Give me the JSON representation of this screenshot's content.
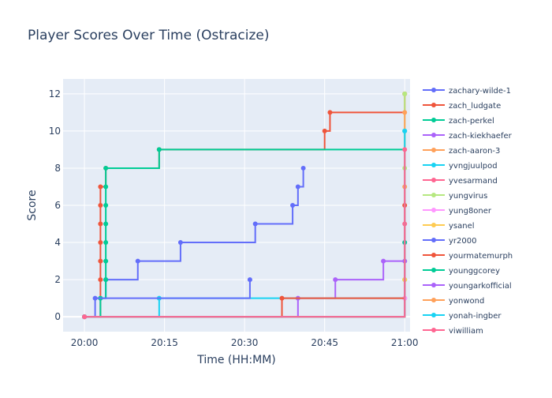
{
  "chart_data": {
    "type": "line",
    "line_shape": "step",
    "title": "Player Scores Over Time (Ostracize)",
    "xlabel": "Time (HH:MM)",
    "ylabel": "Score",
    "x_range": [
      "19:56",
      "21:01"
    ],
    "ylim": [
      -0.8,
      12.8
    ],
    "x_ticks": [
      "20:00",
      "20:15",
      "20:30",
      "20:45",
      "21:00"
    ],
    "y_ticks": [
      0,
      2,
      4,
      6,
      8,
      10,
      12
    ],
    "grid": true,
    "legend_position": "right",
    "colors": {
      "plot_bg": "#e5ecf6",
      "grid": "#ffffff",
      "text": "#2a3f5f"
    },
    "series": [
      {
        "name": "zachary-wilde-1",
        "color": "#636efa",
        "points": [
          [
            "20:00",
            0
          ],
          [
            "20:03",
            1
          ],
          [
            "20:04",
            2
          ],
          [
            "20:10",
            3
          ],
          [
            "20:18",
            4
          ],
          [
            "20:32",
            5
          ],
          [
            "20:39",
            6
          ],
          [
            "20:40",
            7
          ],
          [
            "20:41",
            8
          ]
        ]
      },
      {
        "name": "zach_ludgate",
        "color": "#ef553b",
        "points": [
          [
            "20:00",
            0
          ],
          [
            "20:03",
            2
          ],
          [
            "20:03",
            3
          ],
          [
            "20:03",
            4
          ],
          [
            "20:03",
            5
          ],
          [
            "20:03",
            6
          ],
          [
            "20:03",
            7
          ],
          [
            "20:04",
            8
          ],
          [
            "20:14",
            9
          ],
          [
            "20:45",
            10
          ],
          [
            "20:46",
            11
          ],
          [
            "21:00",
            12
          ]
        ]
      },
      {
        "name": "zach-perkel",
        "color": "#00cc96",
        "points": [
          [
            "20:00",
            0
          ],
          [
            "20:03",
            1
          ],
          [
            "20:04",
            2
          ],
          [
            "20:04",
            3
          ],
          [
            "20:04",
            4
          ],
          [
            "20:04",
            5
          ],
          [
            "20:04",
            6
          ],
          [
            "20:04",
            7
          ],
          [
            "20:04",
            8
          ],
          [
            "20:14",
            9
          ],
          [
            "21:00",
            10
          ]
        ]
      },
      {
        "name": "zach-kiekhaefer",
        "color": "#ab63fa",
        "points": [
          [
            "20:00",
            0
          ],
          [
            "20:40",
            1
          ],
          [
            "20:47",
            2
          ],
          [
            "20:56",
            3
          ],
          [
            "21:00",
            4
          ]
        ]
      },
      {
        "name": "zach-aaron-3",
        "color": "#ffa15a",
        "points": [
          [
            "20:00",
            0
          ],
          [
            "21:00",
            7
          ]
        ]
      },
      {
        "name": "yvngjuulpod",
        "color": "#19d3f3",
        "points": [
          [
            "20:00",
            0
          ],
          [
            "20:14",
            1
          ],
          [
            "21:00",
            2
          ]
        ]
      },
      {
        "name": "yvesarmand",
        "color": "#ff6692",
        "points": [
          [
            "20:00",
            0
          ],
          [
            "21:00",
            1
          ],
          [
            "21:00",
            5
          ]
        ]
      },
      {
        "name": "yungvirus",
        "color": "#b6e880",
        "points": [
          [
            "20:00",
            0
          ],
          [
            "21:00",
            2
          ],
          [
            "21:00",
            3
          ],
          [
            "21:00",
            8
          ],
          [
            "21:00",
            12
          ]
        ]
      },
      {
        "name": "yung8oner",
        "color": "#ff97ff",
        "points": [
          [
            "20:00",
            0
          ],
          [
            "21:00",
            1
          ]
        ]
      },
      {
        "name": "ysanel",
        "color": "#fecb52",
        "points": [
          [
            "20:00",
            0
          ],
          [
            "21:00",
            2
          ]
        ]
      },
      {
        "name": "yr2000",
        "color": "#636efa",
        "points": [
          [
            "20:00",
            0
          ],
          [
            "20:02",
            1
          ],
          [
            "20:31",
            2
          ]
        ]
      },
      {
        "name": "yourmatemurph",
        "color": "#ef553b",
        "points": [
          [
            "20:00",
            0
          ],
          [
            "20:37",
            1
          ],
          [
            "21:00",
            6
          ]
        ]
      },
      {
        "name": "younggcorey",
        "color": "#00cc96",
        "points": [
          [
            "20:00",
            0
          ],
          [
            "21:00",
            4
          ]
        ]
      },
      {
        "name": "youngarkofficial",
        "color": "#ab63fa",
        "points": [
          [
            "20:00",
            0
          ],
          [
            "21:00",
            3
          ]
        ]
      },
      {
        "name": "yonwond",
        "color": "#ffa15a",
        "points": [
          [
            "20:00",
            0
          ],
          [
            "21:00",
            11
          ]
        ]
      },
      {
        "name": "yonah-ingber",
        "color": "#19d3f3",
        "points": [
          [
            "20:00",
            0
          ],
          [
            "21:00",
            10
          ]
        ]
      },
      {
        "name": "yiwilliam",
        "color": "#ff6692",
        "points": [
          [
            "20:00",
            0
          ],
          [
            "21:00",
            9
          ]
        ]
      }
    ]
  }
}
